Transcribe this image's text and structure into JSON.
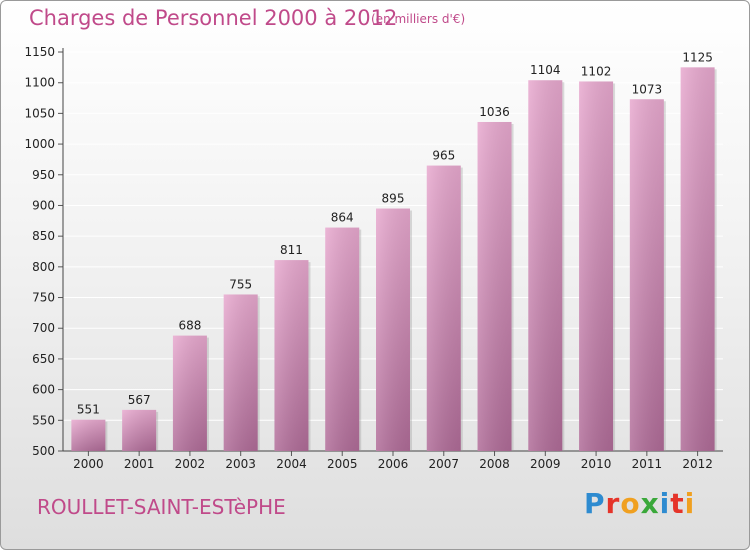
{
  "header": {
    "title": "Charges de Personnel 2000 à 2012",
    "subtitle": "(en milliers d'€)"
  },
  "footer": {
    "commune": "ROULLET-SAINT-ESTèPHE",
    "brand": "Proxiti",
    "brand_letters": [
      {
        "char": "P",
        "color": "#2e8bd0"
      },
      {
        "char": "r",
        "color": "#e5342a"
      },
      {
        "char": "o",
        "color": "#f0a020"
      },
      {
        "char": "x",
        "color": "#3aa83a"
      },
      {
        "char": "i",
        "color": "#2e8bd0"
      },
      {
        "char": "t",
        "color": "#e5342a"
      },
      {
        "char": "i",
        "color": "#f0a020"
      }
    ]
  },
  "colors": {
    "accent": "#c04a8a",
    "bar_top": "#e8a9cf",
    "bar_bottom": "#b06c98"
  },
  "chart_data": {
    "type": "bar",
    "title": "Charges de Personnel 2000 à 2012",
    "subtitle": "(en milliers d'€)",
    "categories": [
      "2000",
      "2001",
      "2002",
      "2003",
      "2004",
      "2005",
      "2006",
      "2007",
      "2008",
      "2009",
      "2010",
      "2011",
      "2012"
    ],
    "values": [
      551,
      567,
      688,
      755,
      811,
      864,
      895,
      965,
      1036,
      1104,
      1102,
      1073,
      1125
    ],
    "ylim": [
      500,
      1150
    ],
    "yticks": [
      500,
      550,
      600,
      650,
      700,
      750,
      800,
      850,
      900,
      950,
      1000,
      1050,
      1100,
      1150
    ],
    "grid": true,
    "legend": "none"
  }
}
